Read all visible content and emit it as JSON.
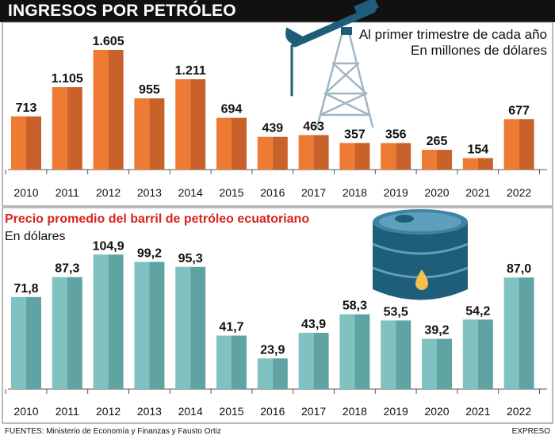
{
  "header": {
    "title": "INGRESOS POR PETRÓLEO"
  },
  "chart1": {
    "subtitle_line1": "Al primer trimestre de cada año",
    "subtitle_line2": "En millones de dólares"
  },
  "chart2": {
    "title": "Precio promedio del barril de petróleo ecuatoriano",
    "unit": "En dólares"
  },
  "footer": {
    "sources": "FUENTES: Ministerio de Economía y Finanzas y Fausto Ortiz",
    "brand": "EXPRESO"
  },
  "colors": {
    "bar1": "#ee7b33",
    "bar1_dark": "#c9622a",
    "bar2": "#7fc2c1",
    "bar2_dark": "#5fa3a3",
    "accent_red": "#d9231e",
    "illustration": "#1f5e7a"
  },
  "icons": [
    "oil-pump-icon",
    "oil-barrel-icon"
  ],
  "chart_data": [
    {
      "type": "bar",
      "title": "INGRESOS POR PETRÓLEO",
      "subtitle": "Al primer trimestre de cada año — En millones de dólares",
      "categories": [
        "2010",
        "2011",
        "2012",
        "2013",
        "2014",
        "2015",
        "2016",
        "2017",
        "2018",
        "2019",
        "2020",
        "2021",
        "2022"
      ],
      "values": [
        713,
        1105,
        1605,
        955,
        1211,
        694,
        439,
        463,
        357,
        356,
        265,
        154,
        677
      ],
      "labels": [
        "713",
        "1.105",
        "1.605",
        "955",
        "1.211",
        "694",
        "439",
        "463",
        "357",
        "356",
        "265",
        "154",
        "677"
      ],
      "ylim": [
        0,
        1700
      ]
    },
    {
      "type": "bar",
      "title": "Precio promedio del barril de petróleo ecuatoriano",
      "subtitle": "En dólares",
      "categories": [
        "2010",
        "2011",
        "2012",
        "2013",
        "2014",
        "2015",
        "2016",
        "2017",
        "2018",
        "2019",
        "2020",
        "2021",
        "2022"
      ],
      "values": [
        71.8,
        87.3,
        104.9,
        99.2,
        95.3,
        41.7,
        23.9,
        43.9,
        58.3,
        53.5,
        39.2,
        54.2,
        87.0
      ],
      "labels": [
        "71,8",
        "87,3",
        "104,9",
        "99,2",
        "95,3",
        "41,7",
        "23,9",
        "43,9",
        "58,3",
        "53,5",
        "39,2",
        "54,2",
        "87,0"
      ],
      "ylim": [
        0,
        110
      ]
    }
  ]
}
